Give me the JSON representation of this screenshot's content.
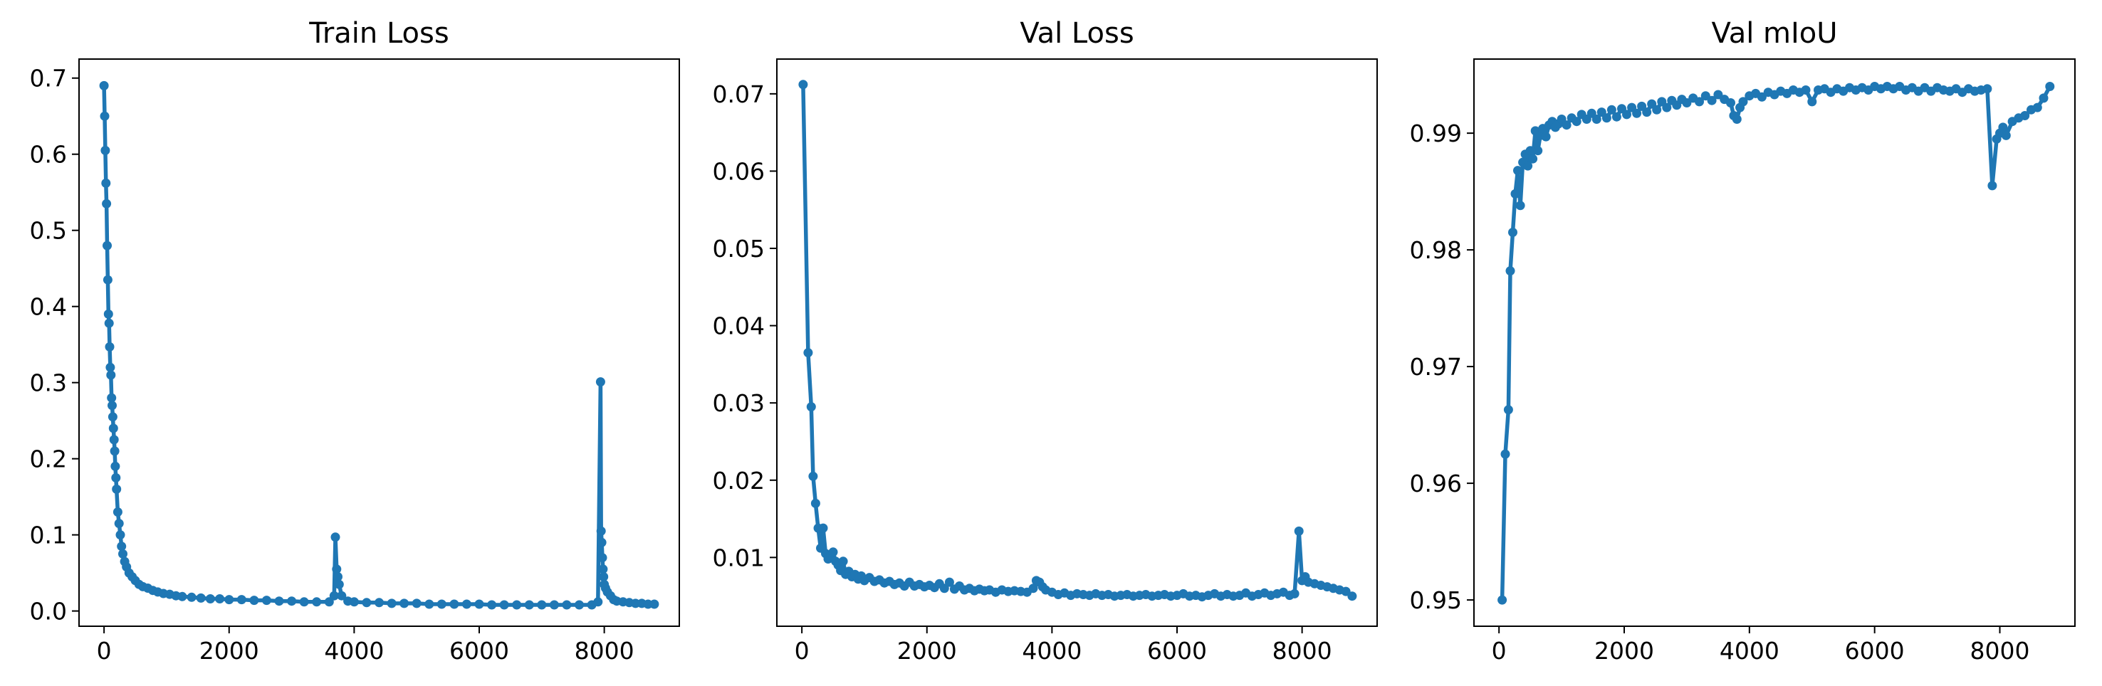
{
  "colors": {
    "series": "#1f77b4",
    "axes": "#000000",
    "background": "#ffffff"
  },
  "chart_data": [
    {
      "type": "line",
      "title": "Train Loss",
      "xlabel": "",
      "ylabel": "",
      "marker": "circle",
      "grid": false,
      "xlim": [
        -400,
        9200
      ],
      "ylim": [
        -0.02,
        0.725
      ],
      "xticks": [
        0,
        2000,
        4000,
        6000,
        8000
      ],
      "yticks": [
        0.0,
        0.1,
        0.2,
        0.3,
        0.4,
        0.5,
        0.6,
        0.7
      ],
      "ytick_labels": [
        "0.0",
        "0.1",
        "0.2",
        "0.3",
        "0.4",
        "0.5",
        "0.6",
        "0.7"
      ],
      "series": [
        {
          "x": [
            0,
            10,
            20,
            30,
            40,
            50,
            60,
            70,
            80,
            90,
            100,
            110,
            120,
            130,
            140,
            150,
            160,
            170,
            180,
            190,
            200,
            220,
            240,
            260,
            280,
            300,
            330,
            360,
            400,
            450,
            500,
            560,
            620,
            700,
            780,
            860,
            950,
            1050,
            1150,
            1250,
            1400,
            1550,
            1700,
            1850,
            2000,
            2200,
            2400,
            2600,
            2800,
            3000,
            3200,
            3400,
            3600,
            3680,
            3700,
            3720,
            3740,
            3760,
            3800,
            3900,
            4000,
            4200,
            4400,
            4600,
            4800,
            5000,
            5200,
            5400,
            5600,
            5800,
            6000,
            6200,
            6400,
            6600,
            6800,
            7000,
            7200,
            7400,
            7600,
            7800,
            7900,
            7940,
            7950,
            7960,
            7970,
            7980,
            7990,
            8000,
            8020,
            8050,
            8100,
            8150,
            8200,
            8300,
            8400,
            8500,
            8600,
            8700,
            8800
          ],
          "y": [
            0.69,
            0.65,
            0.605,
            0.562,
            0.535,
            0.48,
            0.435,
            0.39,
            0.378,
            0.347,
            0.32,
            0.31,
            0.28,
            0.27,
            0.255,
            0.24,
            0.225,
            0.21,
            0.19,
            0.175,
            0.16,
            0.13,
            0.115,
            0.1,
            0.085,
            0.075,
            0.065,
            0.058,
            0.05,
            0.045,
            0.04,
            0.035,
            0.032,
            0.03,
            0.027,
            0.025,
            0.023,
            0.022,
            0.02,
            0.019,
            0.018,
            0.017,
            0.016,
            0.016,
            0.015,
            0.015,
            0.014,
            0.014,
            0.013,
            0.013,
            0.012,
            0.012,
            0.012,
            0.02,
            0.097,
            0.055,
            0.045,
            0.035,
            0.02,
            0.013,
            0.012,
            0.011,
            0.011,
            0.01,
            0.01,
            0.01,
            0.009,
            0.009,
            0.009,
            0.009,
            0.009,
            0.008,
            0.008,
            0.008,
            0.008,
            0.008,
            0.008,
            0.008,
            0.008,
            0.008,
            0.012,
            0.301,
            0.105,
            0.09,
            0.07,
            0.055,
            0.045,
            0.035,
            0.03,
            0.025,
            0.02,
            0.015,
            0.013,
            0.012,
            0.011,
            0.01,
            0.01,
            0.009,
            0.009
          ]
        }
      ]
    },
    {
      "type": "line",
      "title": "Val Loss",
      "xlabel": "",
      "ylabel": "",
      "marker": "circle",
      "grid": false,
      "xlim": [
        -400,
        9200
      ],
      "ylim": [
        0.0011,
        0.0745
      ],
      "xticks": [
        0,
        2000,
        4000,
        6000,
        8000
      ],
      "yticks": [
        0.01,
        0.02,
        0.03,
        0.04,
        0.05,
        0.06,
        0.07
      ],
      "ytick_labels": [
        "0.01",
        "0.02",
        "0.03",
        "0.04",
        "0.05",
        "0.06",
        "0.07"
      ],
      "series": [
        {
          "x": [
            20,
            100,
            150,
            180,
            220,
            260,
            300,
            340,
            380,
            420,
            460,
            500,
            540,
            580,
            620,
            660,
            700,
            750,
            800,
            850,
            900,
            950,
            1000,
            1080,
            1160,
            1240,
            1320,
            1400,
            1480,
            1560,
            1640,
            1720,
            1800,
            1880,
            1960,
            2040,
            2120,
            2200,
            2280,
            2360,
            2440,
            2520,
            2600,
            2680,
            2760,
            2840,
            2920,
            3000,
            3100,
            3200,
            3300,
            3400,
            3500,
            3600,
            3700,
            3750,
            3800,
            3850,
            3900,
            4000,
            4100,
            4200,
            4300,
            4400,
            4500,
            4600,
            4700,
            4800,
            4900,
            5000,
            5100,
            5200,
            5300,
            5400,
            5500,
            5600,
            5700,
            5800,
            5900,
            6000,
            6100,
            6200,
            6300,
            6400,
            6500,
            6600,
            6700,
            6800,
            6900,
            7000,
            7100,
            7200,
            7300,
            7400,
            7500,
            7600,
            7700,
            7800,
            7880,
            7950,
            8000,
            8050,
            8100,
            8200,
            8300,
            8400,
            8500,
            8600,
            8700,
            8800
          ],
          "y": [
            0.0712,
            0.0365,
            0.0295,
            0.0205,
            0.017,
            0.0138,
            0.0112,
            0.0138,
            0.0105,
            0.0098,
            0.0103,
            0.0107,
            0.0095,
            0.009,
            0.0083,
            0.0095,
            0.0078,
            0.0082,
            0.0075,
            0.0078,
            0.0072,
            0.0076,
            0.007,
            0.0074,
            0.0069,
            0.0071,
            0.0067,
            0.0069,
            0.0065,
            0.0067,
            0.0063,
            0.0068,
            0.0063,
            0.0065,
            0.0062,
            0.0064,
            0.0061,
            0.0066,
            0.006,
            0.0068,
            0.0059,
            0.0063,
            0.0058,
            0.006,
            0.0057,
            0.0059,
            0.0057,
            0.0058,
            0.0055,
            0.0058,
            0.0056,
            0.0057,
            0.0056,
            0.0055,
            0.006,
            0.007,
            0.0068,
            0.0062,
            0.0058,
            0.0055,
            0.0052,
            0.0054,
            0.0051,
            0.0053,
            0.0052,
            0.0051,
            0.0053,
            0.0051,
            0.0052,
            0.005,
            0.0051,
            0.0052,
            0.005,
            0.0051,
            0.0052,
            0.005,
            0.0051,
            0.0052,
            0.005,
            0.0051,
            0.0053,
            0.005,
            0.0051,
            0.0049,
            0.0051,
            0.0053,
            0.005,
            0.0052,
            0.005,
            0.0051,
            0.0054,
            0.005,
            0.0052,
            0.0054,
            0.0051,
            0.0053,
            0.0055,
            0.0051,
            0.0053,
            0.0134,
            0.007,
            0.0075,
            0.0068,
            0.0066,
            0.0064,
            0.0062,
            0.006,
            0.0058,
            0.0056,
            0.005
          ]
        }
      ]
    },
    {
      "type": "line",
      "title": "Val mIoU",
      "xlabel": "",
      "ylabel": "",
      "marker": "circle",
      "grid": false,
      "xlim": [
        -400,
        9200
      ],
      "ylim": [
        0.94775,
        0.99635
      ],
      "xticks": [
        0,
        2000,
        4000,
        6000,
        8000
      ],
      "yticks": [
        0.95,
        0.96,
        0.97,
        0.98,
        0.99
      ],
      "ytick_labels": [
        "0.95",
        "0.96",
        "0.97",
        "0.98",
        "0.99"
      ],
      "series": [
        {
          "x": [
            50,
            100,
            150,
            180,
            220,
            260,
            300,
            340,
            380,
            420,
            460,
            500,
            540,
            580,
            620,
            660,
            700,
            750,
            800,
            850,
            900,
            950,
            1000,
            1080,
            1160,
            1240,
            1320,
            1400,
            1480,
            1560,
            1640,
            1720,
            1800,
            1880,
            1960,
            2040,
            2120,
            2200,
            2280,
            2360,
            2440,
            2520,
            2600,
            2680,
            2760,
            2840,
            2920,
            3000,
            3100,
            3200,
            3300,
            3400,
            3500,
            3600,
            3700,
            3750,
            3800,
            3850,
            3900,
            4000,
            4100,
            4200,
            4300,
            4400,
            4500,
            4600,
            4700,
            4800,
            4900,
            5000,
            5100,
            5200,
            5300,
            5400,
            5500,
            5600,
            5700,
            5800,
            5900,
            6000,
            6100,
            6200,
            6300,
            6400,
            6500,
            6600,
            6700,
            6800,
            6900,
            7000,
            7100,
            7200,
            7300,
            7400,
            7500,
            7600,
            7700,
            7800,
            7880,
            7950,
            8000,
            8050,
            8100,
            8200,
            8300,
            8400,
            8500,
            8600,
            8700,
            8800
          ],
          "y": [
            0.95,
            0.9625,
            0.9663,
            0.9782,
            0.9815,
            0.9848,
            0.9868,
            0.9838,
            0.9875,
            0.9882,
            0.9872,
            0.9885,
            0.9878,
            0.9902,
            0.9885,
            0.9898,
            0.9904,
            0.9897,
            0.9907,
            0.991,
            0.9905,
            0.9908,
            0.9912,
            0.9907,
            0.9913,
            0.991,
            0.9916,
            0.9912,
            0.9917,
            0.9912,
            0.9918,
            0.9913,
            0.992,
            0.9914,
            0.9921,
            0.9916,
            0.9922,
            0.9917,
            0.9923,
            0.9918,
            0.9925,
            0.992,
            0.9927,
            0.9922,
            0.9928,
            0.9924,
            0.9929,
            0.9926,
            0.993,
            0.9927,
            0.9932,
            0.9928,
            0.9933,
            0.9929,
            0.9926,
            0.9915,
            0.9912,
            0.9922,
            0.9927,
            0.9932,
            0.9934,
            0.9931,
            0.9935,
            0.9933,
            0.9936,
            0.9934,
            0.9937,
            0.9935,
            0.9937,
            0.9927,
            0.9937,
            0.9938,
            0.9935,
            0.9938,
            0.9936,
            0.9939,
            0.9937,
            0.9939,
            0.9937,
            0.994,
            0.9938,
            0.994,
            0.9938,
            0.994,
            0.9937,
            0.9939,
            0.9936,
            0.9939,
            0.9936,
            0.9939,
            0.9937,
            0.9936,
            0.9938,
            0.9935,
            0.9938,
            0.9936,
            0.9937,
            0.9938,
            0.9855,
            0.9895,
            0.99,
            0.9905,
            0.9898,
            0.991,
            0.9913,
            0.9915,
            0.992,
            0.9922,
            0.993,
            0.994
          ]
        }
      ]
    }
  ]
}
